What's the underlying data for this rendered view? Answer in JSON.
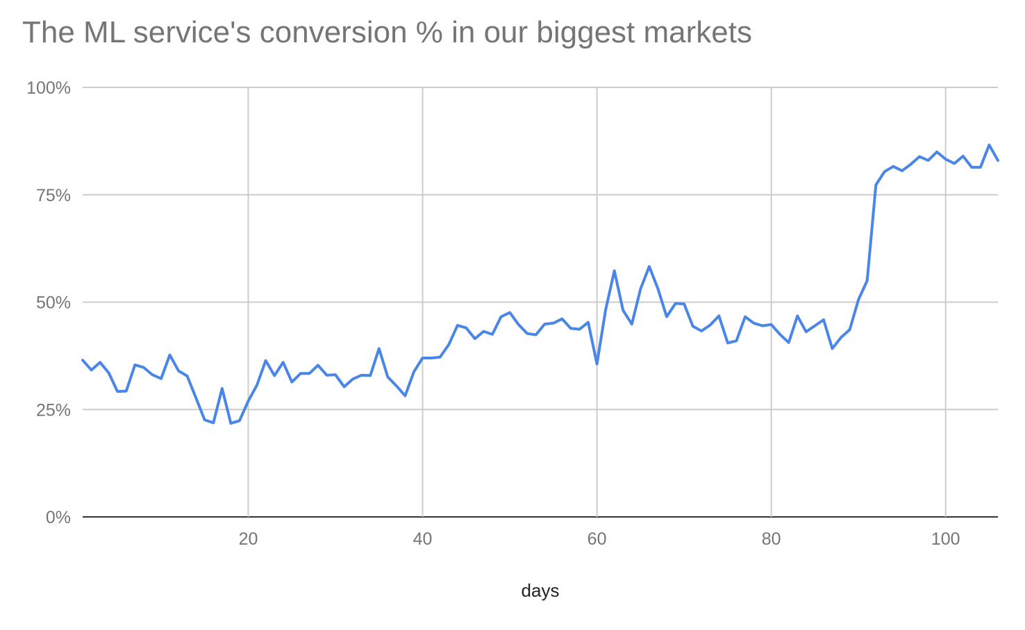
{
  "chart_data": {
    "type": "line",
    "title": "The ML service's conversion % in our biggest markets",
    "xlabel": "days",
    "ylabel": "",
    "xlim": [
      1,
      106
    ],
    "ylim": [
      0,
      100
    ],
    "x_ticks": [
      20,
      40,
      60,
      80,
      100
    ],
    "y_ticks": [
      0,
      25,
      50,
      75,
      100
    ],
    "x_tick_labels": [
      "20",
      "40",
      "60",
      "80",
      "100"
    ],
    "y_tick_labels": [
      "0%",
      "25%",
      "50%",
      "75%",
      "100%"
    ],
    "grid": true,
    "legend": "none",
    "series": [
      {
        "color": "#4a86e8",
        "x": [
          1,
          2,
          3,
          4,
          5,
          6,
          7,
          8,
          9,
          10,
          11,
          12,
          13,
          14,
          15,
          16,
          17,
          18,
          19,
          20,
          21,
          22,
          23,
          24,
          25,
          26,
          27,
          28,
          29,
          30,
          31,
          32,
          33,
          34,
          35,
          36,
          37,
          38,
          39,
          40,
          41,
          42,
          43,
          44,
          45,
          46,
          47,
          48,
          49,
          50,
          51,
          52,
          53,
          54,
          55,
          56,
          57,
          58,
          59,
          60,
          61,
          62,
          63,
          64,
          65,
          66,
          67,
          68,
          69,
          70,
          71,
          72,
          73,
          74,
          75,
          76,
          77,
          78,
          79,
          80,
          81,
          82,
          83,
          84,
          85,
          86,
          87,
          88,
          89,
          90,
          91,
          92,
          93,
          94,
          95,
          96,
          97,
          98,
          99,
          100,
          101,
          102,
          103,
          104,
          105,
          106
        ],
        "values": [
          36.5,
          34.2,
          36,
          33.5,
          29.2,
          29.3,
          35.4,
          34.8,
          33.1,
          32.2,
          37.7,
          34,
          32.8,
          27.7,
          22.6,
          21.9,
          29.9,
          21.8,
          22.4,
          27,
          30.7,
          36.4,
          32.9,
          36,
          31.4,
          33.4,
          33.4,
          35.3,
          33,
          33.1,
          30.3,
          32.1,
          33,
          32.9,
          39.2,
          32.6,
          30.5,
          28.2,
          33.8,
          37,
          37,
          37.2,
          40.1,
          44.6,
          44,
          41.5,
          43.2,
          42.5,
          46.6,
          47.6,
          44.8,
          42.7,
          42.4,
          44.9,
          45.1,
          46.1,
          43.9,
          43.7,
          45.3,
          35.6,
          48.2,
          57.3,
          48.1,
          44.9,
          53.1,
          58.3,
          53.1,
          46.6,
          49.7,
          49.6,
          44.4,
          43.3,
          44.7,
          46.8,
          40.5,
          41,
          46.6,
          45.1,
          44.5,
          44.8,
          42.5,
          40.6,
          46.8,
          43.1,
          44.5,
          45.9,
          39.2,
          41.8,
          43.6,
          50.6,
          55,
          77.3,
          80.4,
          81.6,
          80.6,
          82.1,
          83.9,
          83,
          85,
          83.3,
          82.3,
          84,
          81.4,
          81.4,
          86.6,
          83
        ]
      }
    ]
  }
}
